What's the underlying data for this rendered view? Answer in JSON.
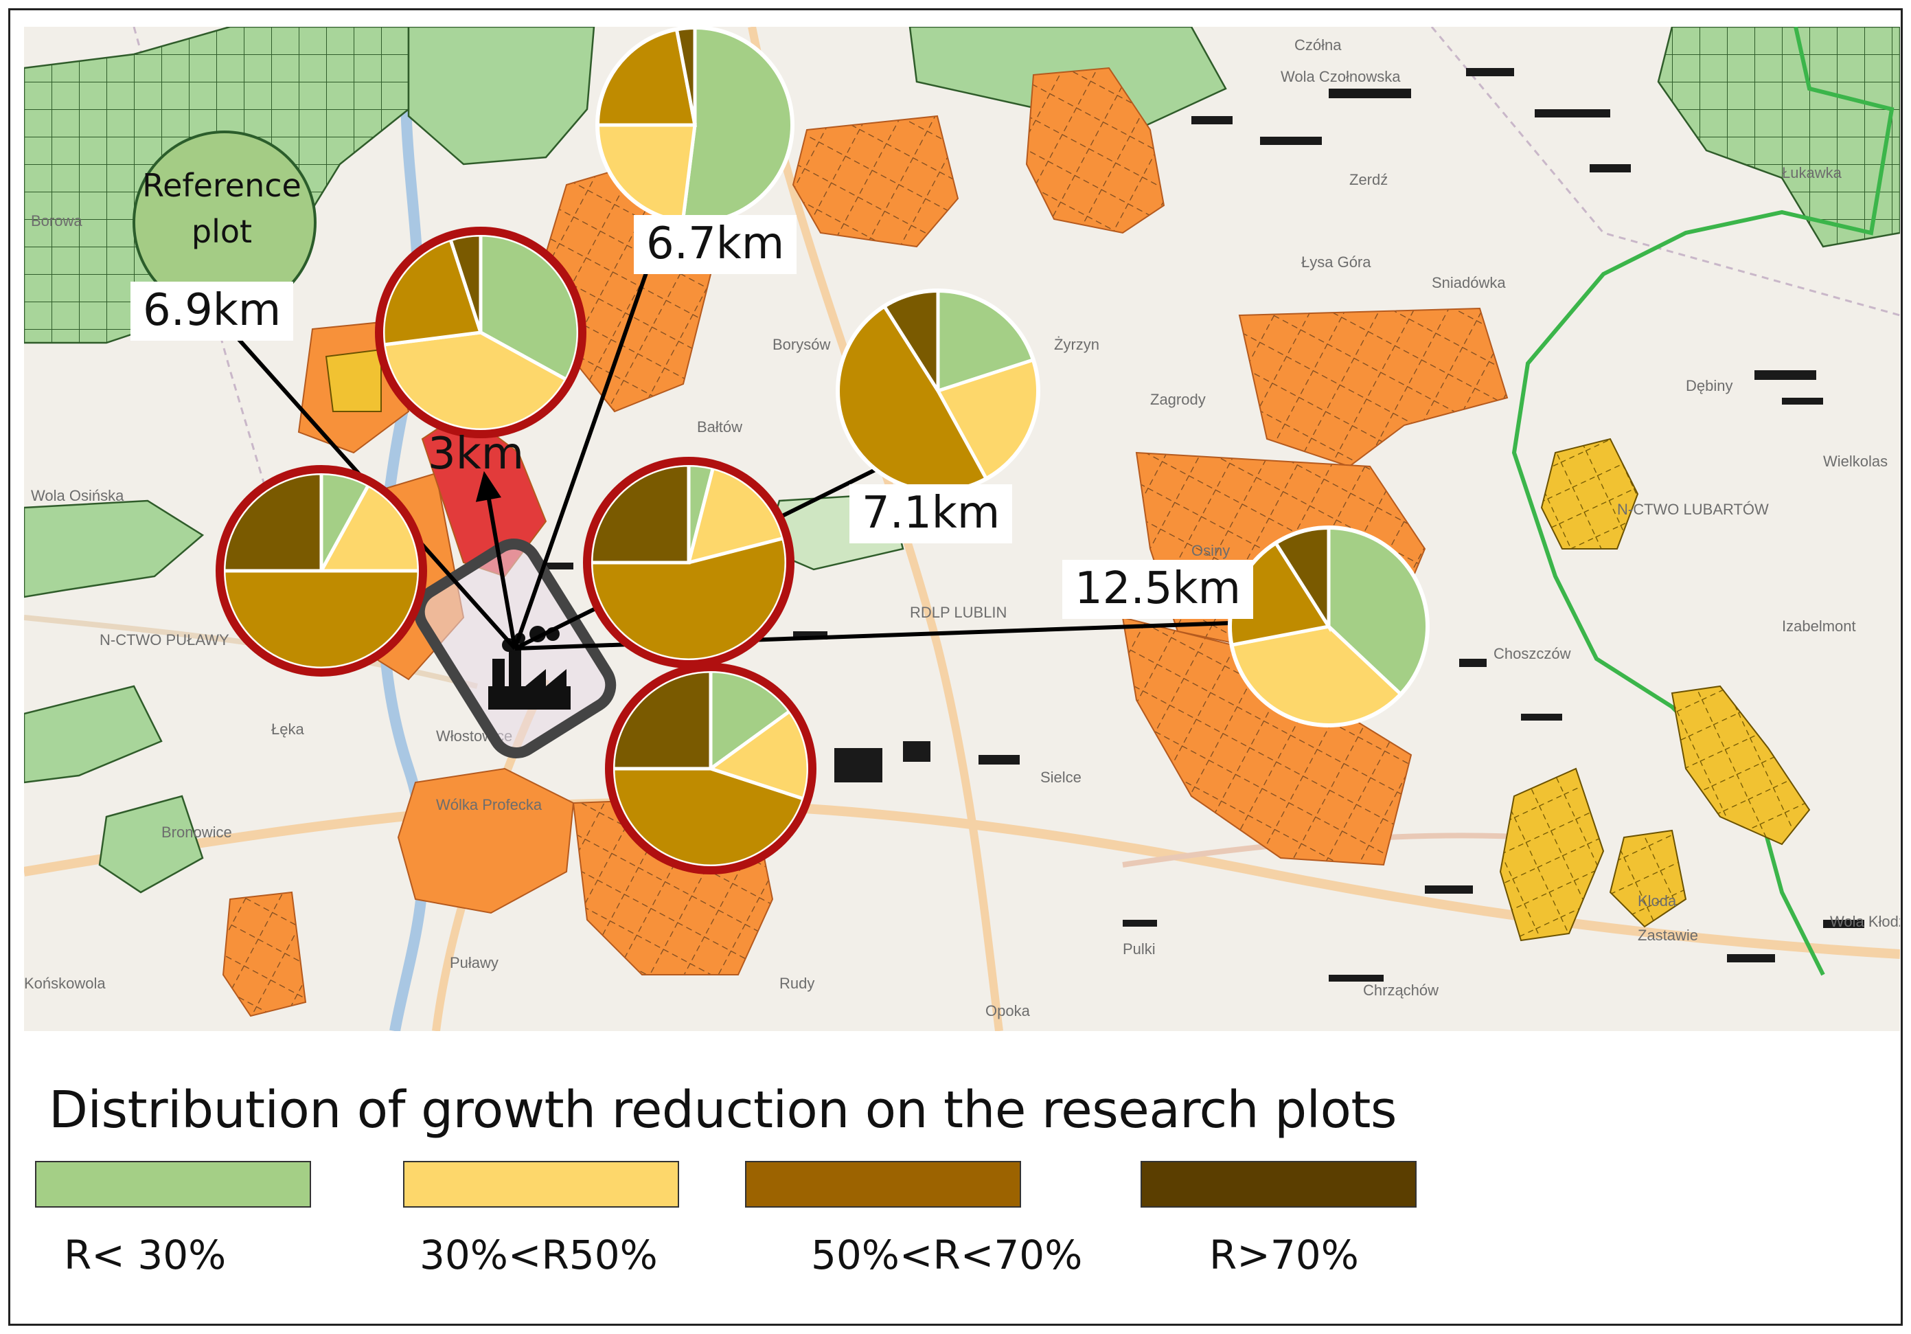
{
  "reference": {
    "label_line1": "Reference",
    "label_line2": "plot",
    "color": "#a4cc85"
  },
  "distances": [
    {
      "id": "d69",
      "label": "6.9km"
    },
    {
      "id": "d67",
      "label": "6.7km"
    },
    {
      "id": "d3",
      "label": "3km"
    },
    {
      "id": "d71",
      "label": "7.1km"
    },
    {
      "id": "d125",
      "label": "12.5km"
    }
  ],
  "legend": {
    "title": "Distribution of growth reduction on the research plots",
    "items": [
      {
        "label": "R< 30%",
        "color": "#a4cf86"
      },
      {
        "label": "30%<R50%",
        "color": "#fdd76b"
      },
      {
        "label": "50%<R<70%",
        "color": "#9c6300"
      },
      {
        "label": "R>70%",
        "color": "#5b3e00"
      }
    ]
  },
  "pie_colors": [
    "#a4cf86",
    "#fdd76b",
    "#bf8b00",
    "#7a5a00"
  ],
  "plots": [
    {
      "id": "plot-6-7km",
      "distance": "6.7km",
      "ring": false,
      "shares": [
        0.52,
        0.23,
        0.22,
        0.03
      ]
    },
    {
      "id": "plot-3km",
      "distance": "3km",
      "ring": true,
      "shares": [
        0.33,
        0.4,
        0.22,
        0.05
      ]
    },
    {
      "id": "plot-7-1km",
      "distance": "7.1km",
      "ring": false,
      "shares": [
        0.2,
        0.22,
        0.49,
        0.09
      ]
    },
    {
      "id": "plot-west",
      "distance": "",
      "ring": true,
      "shares": [
        0.08,
        0.17,
        0.5,
        0.25
      ]
    },
    {
      "id": "plot-center-east",
      "distance": "",
      "ring": true,
      "shares": [
        0.04,
        0.17,
        0.54,
        0.25
      ]
    },
    {
      "id": "plot-south",
      "distance": "",
      "ring": true,
      "shares": [
        0.15,
        0.15,
        0.45,
        0.25
      ]
    },
    {
      "id": "plot-12-5km",
      "distance": "12.5km",
      "ring": false,
      "shares": [
        0.37,
        0.35,
        0.19,
        0.09
      ]
    }
  ],
  "map_labels": [
    "Czółna",
    "Wola Czołnowska",
    "Zerdź",
    "Łukawka",
    "Borowa",
    "Sniadówka",
    "Łysa Góra",
    "Borysów",
    "Bałtów",
    "Żyrzyn",
    "Zagrody",
    "Dębiny",
    "Wielkolas",
    "N-CTWO LUBARTÓW",
    "Wola Osińska",
    "N-CTWO PUŁAWY",
    "RDLP LUBLIN",
    "Osiny",
    "Izabelmont",
    "Choszczów",
    "Łęka",
    "Włostowice",
    "Wólka Profecka",
    "Bronowice",
    "Sielce",
    "Końskowola",
    "Puławy",
    "Opoka",
    "Chrząchów",
    "Rudy",
    "Kloda",
    "Zastawie",
    "Pulki",
    "Wola Kłodzka"
  ],
  "icons": {
    "factory": "factory-icon"
  }
}
